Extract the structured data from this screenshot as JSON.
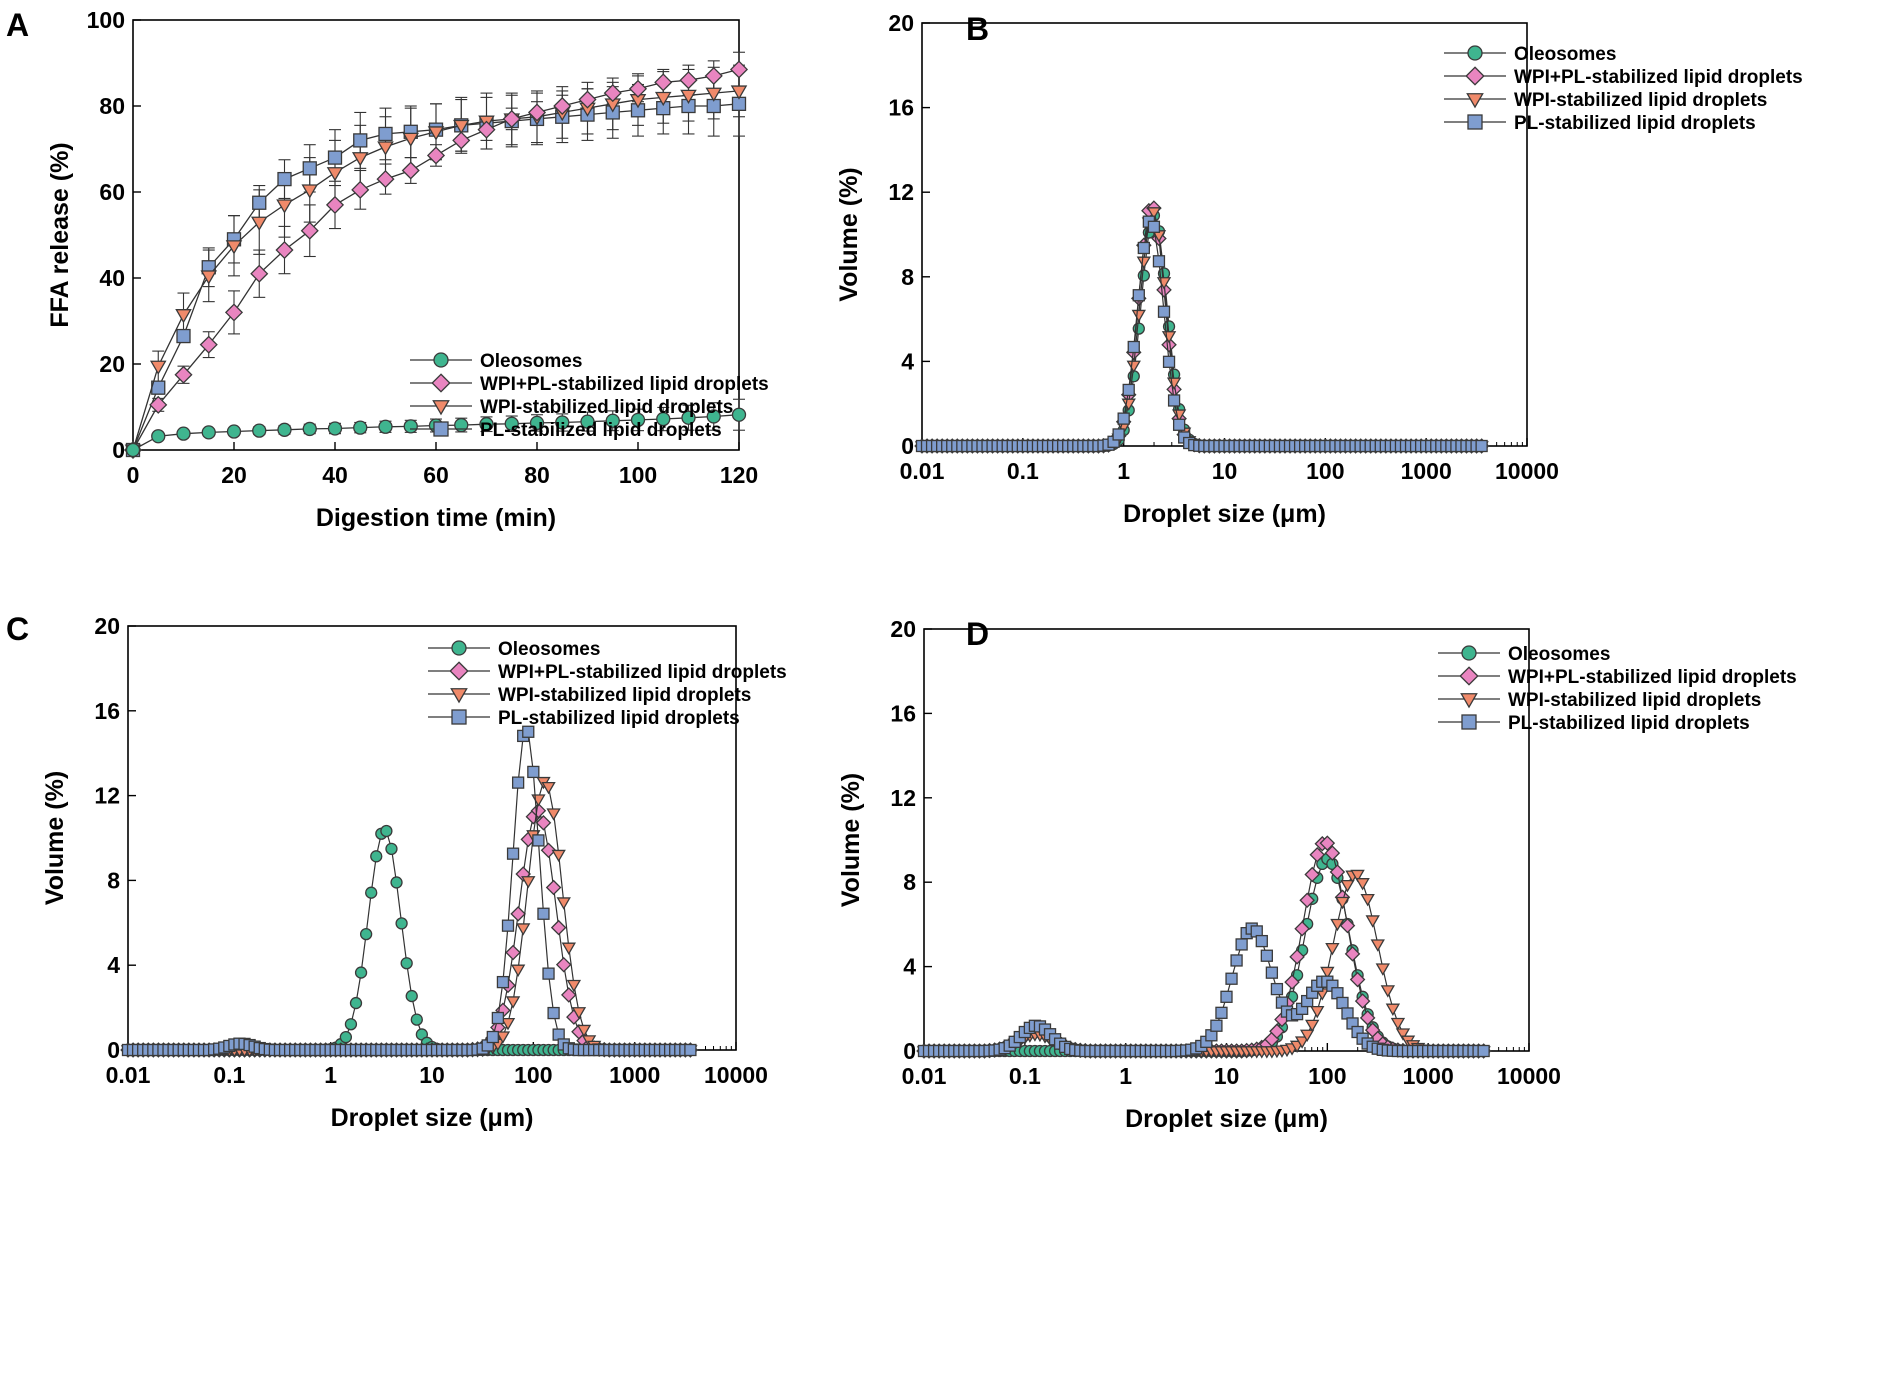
{
  "figure": {
    "panels": [
      "A",
      "B",
      "C",
      "D"
    ]
  },
  "legend": {
    "entries": [
      {
        "name": "Oleosomes",
        "color": "#3fb58f",
        "marker": "circle"
      },
      {
        "name": "WPI+PL-stabilized lipid droplets",
        "color": "#e985c0",
        "marker": "diamond"
      },
      {
        "name": "WPI-stabilized lipid droplets",
        "color": "#f08a6a",
        "marker": "triangle-down"
      },
      {
        "name": "PL-stabilized lipid droplets",
        "color": "#7f9dcf",
        "marker": "square"
      }
    ]
  },
  "chart_data": [
    {
      "panel": "A",
      "type": "line",
      "xlabel": "Digestion time (min)",
      "ylabel": "FFA release (%)",
      "xlim": [
        0,
        120
      ],
      "ylim": [
        0,
        100
      ],
      "xticks": [
        0,
        20,
        40,
        60,
        80,
        100,
        120
      ],
      "yticks": [
        0,
        20,
        40,
        60,
        80,
        100
      ],
      "grid": false,
      "legend_position": "center-right",
      "x": [
        0,
        5,
        10,
        15,
        20,
        25,
        30,
        35,
        40,
        45,
        50,
        55,
        60,
        65,
        70,
        75,
        80,
        85,
        90,
        95,
        100,
        105,
        110,
        115,
        120
      ],
      "series": [
        {
          "name": "Oleosomes",
          "values": [
            0,
            3.2,
            3.8,
            4.1,
            4.3,
            4.5,
            4.7,
            4.9,
            5.0,
            5.2,
            5.4,
            5.5,
            5.7,
            5.8,
            6.0,
            6.1,
            6.3,
            6.4,
            6.6,
            6.8,
            7.0,
            7.2,
            7.5,
            7.8,
            8.2
          ],
          "error": [
            0,
            0.5,
            0.6,
            0.7,
            0.8,
            0.9,
            1.0,
            1.1,
            1.2,
            1.2,
            1.3,
            1.4,
            1.5,
            1.6,
            1.7,
            1.8,
            1.9,
            2.0,
            2.2,
            2.3,
            2.5,
            2.7,
            2.9,
            3.2,
            3.6
          ]
        },
        {
          "name": "WPI+PL-stabilized lipid droplets",
          "values": [
            0,
            10.5,
            17.5,
            24.5,
            32.0,
            41.0,
            46.5,
            51.0,
            57.0,
            60.5,
            63.0,
            65.0,
            68.5,
            72.0,
            74.5,
            77.0,
            78.5,
            80.0,
            81.5,
            83.0,
            84.0,
            85.5,
            86.0,
            87.0,
            88.5
          ],
          "error": [
            0,
            1.5,
            2.0,
            3.0,
            5.0,
            5.5,
            5.5,
            6.0,
            5.5,
            4.5,
            3.5,
            3.0,
            2.5,
            2.5,
            2.5,
            2.5,
            2.5,
            2.5,
            2.5,
            2.5,
            3.0,
            3.0,
            3.5,
            3.5,
            4.0
          ]
        },
        {
          "name": "WPI-stabilized lipid droplets",
          "values": [
            0,
            19.5,
            31.5,
            40.5,
            47.5,
            53.0,
            57.0,
            60.5,
            64.5,
            68.0,
            70.5,
            72.5,
            74.0,
            75.5,
            76.5,
            77.0,
            77.5,
            78.5,
            79.5,
            80.5,
            81.5,
            82.0,
            82.5,
            83.0,
            83.5
          ],
          "error": [
            0,
            3.5,
            5.0,
            6.0,
            7.0,
            7.5,
            7.5,
            7.5,
            7.5,
            7.5,
            7.0,
            7.0,
            6.5,
            6.5,
            6.5,
            6.0,
            6.0,
            6.0,
            6.0,
            6.0,
            6.0,
            6.0,
            6.0,
            6.0,
            6.0
          ]
        },
        {
          "name": "PL-stabilized lipid droplets",
          "values": [
            0,
            14.5,
            26.5,
            42.5,
            49.0,
            57.5,
            63.0,
            65.5,
            68.0,
            72.0,
            73.5,
            74.0,
            74.5,
            75.5,
            76.0,
            76.5,
            77.0,
            77.5,
            78.0,
            78.5,
            79.0,
            79.5,
            80.0,
            80.0,
            80.5
          ],
          "error": [
            0,
            1.5,
            1.5,
            4.5,
            5.5,
            4.0,
            4.5,
            5.5,
            6.5,
            6.5,
            6.0,
            6.0,
            6.0,
            6.0,
            6.0,
            6.0,
            6.0,
            6.0,
            6.0,
            6.0,
            6.0,
            6.0,
            6.5,
            7.0,
            7.5
          ]
        }
      ]
    },
    {
      "panel": "B",
      "type": "line",
      "xscale": "log",
      "xlabel": "Droplet size (μm)",
      "ylabel": "Volume (%)",
      "xlim": [
        0.01,
        10000
      ],
      "ylim": [
        0,
        20
      ],
      "xticks": [
        0.01,
        0.1,
        1,
        10,
        100,
        1000,
        10000
      ],
      "xtick_labels": [
        "0.01",
        "0.1",
        "1",
        "10",
        "100",
        "1000",
        "10000"
      ],
      "yticks": [
        0,
        4,
        8,
        12,
        16,
        20
      ],
      "grid": false,
      "legend_position": "top-right",
      "series": [
        {
          "name": "Oleosomes",
          "peaks": [
            {
              "center": 2.0,
              "width": 0.13,
              "height": 10.9
            }
          ]
        },
        {
          "name": "WPI+PL-stabilized lipid droplets",
          "peaks": [
            {
              "center": 1.9,
              "width": 0.13,
              "height": 11.4
            }
          ]
        },
        {
          "name": "WPI-stabilized lipid droplets",
          "peaks": [
            {
              "center": 1.95,
              "width": 0.13,
              "height": 11.1
            }
          ]
        },
        {
          "name": "PL-stabilized lipid droplets",
          "peaks": [
            {
              "center": 1.85,
              "width": 0.13,
              "height": 10.7
            }
          ]
        }
      ]
    },
    {
      "panel": "C",
      "type": "line",
      "xscale": "log",
      "xlabel": "Droplet size (μm)",
      "ylabel": "Volume (%)",
      "xlim": [
        0.01,
        10000
      ],
      "ylim": [
        0,
        20
      ],
      "xticks": [
        0.01,
        0.1,
        1,
        10,
        100,
        1000,
        10000
      ],
      "xtick_labels": [
        "0.01",
        "0.1",
        "1",
        "10",
        "100",
        "1000",
        "10000"
      ],
      "yticks": [
        0,
        4,
        8,
        12,
        16,
        20
      ],
      "grid": false,
      "legend_position": "top-right",
      "series": [
        {
          "name": "Oleosomes",
          "peaks": [
            {
              "center": 3.4,
              "width": 0.16,
              "height": 10.4
            }
          ]
        },
        {
          "name": "WPI+PL-stabilized lipid droplets",
          "peaks": [
            {
              "center": 110,
              "width": 0.18,
              "height": 11.3
            }
          ]
        },
        {
          "name": "WPI-stabilized lipid droplets",
          "peaks": [
            {
              "center": 130,
              "width": 0.17,
              "height": 12.7
            }
          ]
        },
        {
          "name": "PL-stabilized lipid droplets",
          "peaks": [
            {
              "center": 0.13,
              "width": 0.12,
              "height": 0.3
            },
            {
              "center": 85,
              "width": 0.13,
              "height": 15.2
            }
          ]
        }
      ]
    },
    {
      "panel": "D",
      "type": "line",
      "xscale": "log",
      "xlabel": "Droplet size (μm)",
      "ylabel": "Volume (%)",
      "xlim": [
        0.01,
        10000
      ],
      "ylim": [
        0,
        20
      ],
      "xticks": [
        0.01,
        0.1,
        1,
        10,
        100,
        1000,
        10000
      ],
      "xtick_labels": [
        "0.01",
        "0.1",
        "1",
        "10",
        "100",
        "1000",
        "10000"
      ],
      "yticks": [
        0,
        4,
        8,
        12,
        16,
        20
      ],
      "grid": false,
      "legend_position": "top-right",
      "series": [
        {
          "name": "Oleosomes",
          "peaks": [
            {
              "center": 100,
              "width": 0.22,
              "height": 9.1
            }
          ]
        },
        {
          "name": "WPI+PL-stabilized lipid droplets",
          "peaks": [
            {
              "center": 0.13,
              "width": 0.17,
              "height": 0.9
            },
            {
              "center": 95,
              "width": 0.22,
              "height": 9.9
            }
          ]
        },
        {
          "name": "WPI-stabilized lipid droplets",
          "peaks": [
            {
              "center": 0.13,
              "width": 0.17,
              "height": 0.8
            },
            {
              "center": 190,
              "width": 0.22,
              "height": 8.4
            }
          ]
        },
        {
          "name": "PL-stabilized lipid droplets",
          "peaks": [
            {
              "center": 0.13,
              "width": 0.15,
              "height": 1.2
            },
            {
              "center": 18,
              "width": 0.2,
              "height": 5.8
            },
            {
              "center": 95,
              "width": 0.2,
              "height": 3.3
            }
          ]
        }
      ]
    }
  ]
}
